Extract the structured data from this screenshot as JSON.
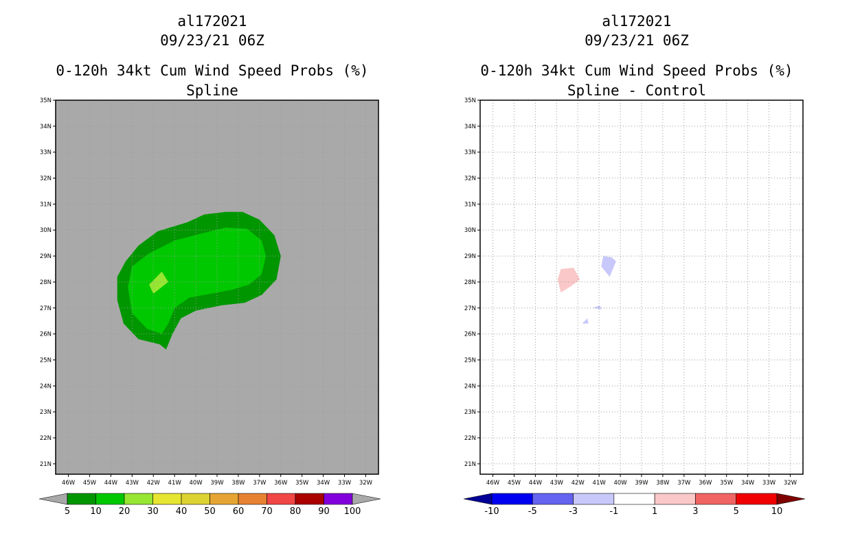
{
  "chart_data": [
    {
      "type": "filled-contour-map",
      "storm_id": "al172021",
      "datetime": "09/23/21 06Z",
      "title": "0-120h 34kt Cum Wind Speed Probs (%)",
      "subtitle": "Spline",
      "lat_labels": [
        "35N",
        "34N",
        "33N",
        "32N",
        "31N",
        "30N",
        "29N",
        "28N",
        "27N",
        "26N",
        "25N",
        "24N",
        "23N",
        "22N",
        "21N"
      ],
      "lon_labels": [
        "46W",
        "45W",
        "44W",
        "43W",
        "42W",
        "41W",
        "40W",
        "39W",
        "38W",
        "37W",
        "36W",
        "35W",
        "34W",
        "33W",
        "32W"
      ],
      "xlim": [
        -46.6,
        -31.4
      ],
      "ylim": [
        20.6,
        35.0
      ],
      "background_color": "#a9a9a9",
      "grid": true,
      "contour_regions": [
        {
          "level": "5-10",
          "color": "#009600",
          "outline_lonlat": [
            [
              -43.7,
              28.2
            ],
            [
              -43.3,
              28.8
            ],
            [
              -42.7,
              29.4
            ],
            [
              -41.8,
              29.95
            ],
            [
              -40.4,
              30.3
            ],
            [
              -39.6,
              30.6
            ],
            [
              -38.6,
              30.7
            ],
            [
              -37.8,
              30.7
            ],
            [
              -37.0,
              30.4
            ],
            [
              -36.3,
              29.8
            ],
            [
              -36.0,
              29.0
            ],
            [
              -36.2,
              28.1
            ],
            [
              -36.9,
              27.5
            ],
            [
              -37.7,
              27.2
            ],
            [
              -38.8,
              27.1
            ],
            [
              -40.0,
              26.9
            ],
            [
              -40.7,
              26.6
            ],
            [
              -41.1,
              26.0
            ],
            [
              -41.4,
              25.4
            ],
            [
              -41.7,
              25.6
            ],
            [
              -42.7,
              25.8
            ],
            [
              -43.4,
              26.4
            ],
            [
              -43.7,
              27.3
            ]
          ]
        },
        {
          "level": "10-20",
          "color": "#00c800",
          "outline_lonlat": [
            [
              -43.2,
              27.8
            ],
            [
              -43.0,
              28.6
            ],
            [
              -42.2,
              29.1
            ],
            [
              -41.0,
              29.6
            ],
            [
              -39.8,
              29.85
            ],
            [
              -38.6,
              30.1
            ],
            [
              -37.6,
              30.05
            ],
            [
              -36.9,
              29.6
            ],
            [
              -36.7,
              29.0
            ],
            [
              -36.9,
              28.3
            ],
            [
              -37.5,
              27.9
            ],
            [
              -38.3,
              27.7
            ],
            [
              -39.3,
              27.55
            ],
            [
              -40.3,
              27.4
            ],
            [
              -41.0,
              27.0
            ],
            [
              -41.3,
              26.4
            ],
            [
              -41.6,
              26.0
            ],
            [
              -42.3,
              26.2
            ],
            [
              -43.0,
              26.8
            ]
          ]
        },
        {
          "level": "20-30",
          "color": "#96e632",
          "outline_lonlat": [
            [
              -42.2,
              27.9
            ],
            [
              -41.6,
              28.4
            ],
            [
              -41.3,
              28.0
            ],
            [
              -42.0,
              27.55
            ]
          ]
        }
      ],
      "colorbar": {
        "levels": [
          "5",
          "10",
          "20",
          "30",
          "40",
          "50",
          "60",
          "70",
          "80",
          "90",
          "100"
        ],
        "colors": [
          "#009600",
          "#00c800",
          "#96e632",
          "#e6e632",
          "#dcd232",
          "#e6a532",
          "#e68232",
          "#f04646",
          "#aa0000",
          "#8200dc"
        ],
        "low_extend_color": "#a9a9a9",
        "high_extend_color": "#a9a9a9"
      }
    },
    {
      "type": "filled-contour-map",
      "storm_id": "al172021",
      "datetime": "09/23/21 06Z",
      "title": "0-120h 34kt Cum Wind Speed Probs (%)",
      "subtitle": "Spline - Control",
      "lat_labels": [
        "35N",
        "34N",
        "33N",
        "32N",
        "31N",
        "30N",
        "29N",
        "28N",
        "27N",
        "26N",
        "25N",
        "24N",
        "23N",
        "22N",
        "21N"
      ],
      "lon_labels": [
        "46W",
        "45W",
        "44W",
        "43W",
        "42W",
        "41W",
        "40W",
        "39W",
        "38W",
        "37W",
        "36W",
        "35W",
        "34W",
        "33W",
        "32W"
      ],
      "xlim": [
        -46.6,
        -31.4
      ],
      "ylim": [
        20.6,
        35.0
      ],
      "background_color": "#ffffff",
      "grid": true,
      "contour_regions": [
        {
          "level": "1-3",
          "color": "#fac8c8",
          "outline_lonlat": [
            [
              -42.8,
              28.5
            ],
            [
              -42.2,
              28.55
            ],
            [
              -41.9,
              28.1
            ],
            [
              -42.3,
              27.85
            ],
            [
              -42.8,
              27.6
            ],
            [
              -42.95,
              28.1
            ]
          ]
        },
        {
          "level": "-3--1",
          "color": "#c8c8fa",
          "outline_lonlat": [
            [
              -40.8,
              29.0
            ],
            [
              -40.4,
              28.95
            ],
            [
              -40.2,
              28.8
            ],
            [
              -40.5,
              28.2
            ],
            [
              -40.9,
              28.6
            ]
          ]
        },
        {
          "level": "-3--1",
          "color": "#c8c8fa",
          "outline_lonlat": [
            [
              -41.3,
              27.0
            ],
            [
              -40.95,
              27.1
            ],
            [
              -40.9,
              26.95
            ]
          ]
        },
        {
          "level": "-3--1",
          "color": "#c8c8fa",
          "outline_lonlat": [
            [
              -41.8,
              26.4
            ],
            [
              -41.55,
              26.6
            ],
            [
              -41.5,
              26.4
            ]
          ]
        }
      ],
      "colorbar": {
        "levels": [
          "-10",
          "-5",
          "-3",
          "-1",
          "1",
          "3",
          "5",
          "10"
        ],
        "colors": [
          "#0000f0",
          "#6464f0",
          "#c8c8fa",
          "#ffffff",
          "#fac8c8",
          "#f06464",
          "#f00000"
        ],
        "low_extend_color": "#000096",
        "high_extend_color": "#800000"
      }
    }
  ]
}
